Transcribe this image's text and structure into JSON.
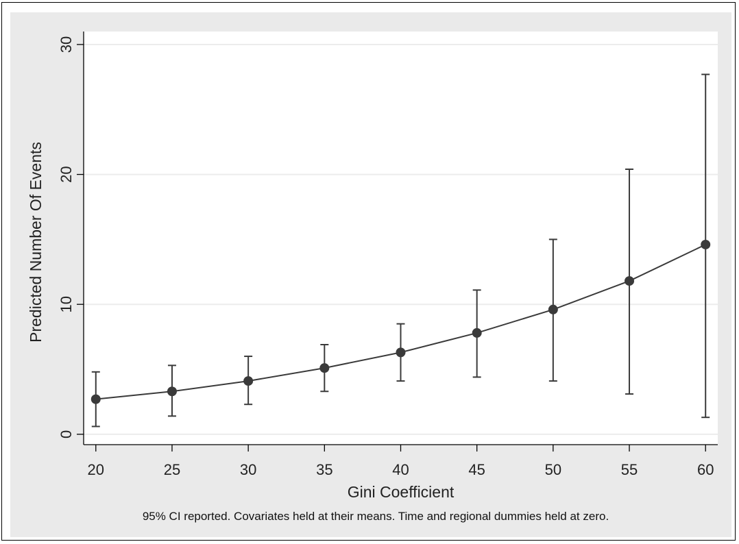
{
  "chart_data": {
    "type": "line",
    "title": "",
    "xlabel": "Gini Coefficient",
    "ylabel": "Predicted Number Of Events",
    "note": "95% CI reported. Covariates held at their means. Time and regional dummies held at zero.",
    "x": [
      20,
      25,
      30,
      35,
      40,
      45,
      50,
      55,
      60
    ],
    "series": [
      {
        "values": [
          2.7,
          3.3,
          4.1,
          5.1,
          6.3,
          7.8,
          9.6,
          11.8,
          14.6
        ],
        "ci_lower": [
          0.6,
          1.4,
          2.3,
          3.3,
          4.1,
          4.4,
          4.1,
          3.1,
          1.3
        ],
        "ci_upper": [
          4.8,
          5.3,
          6.0,
          6.9,
          8.5,
          11.1,
          15.0,
          20.4,
          27.7
        ]
      }
    ],
    "xlim": [
      19.2,
      60.8
    ],
    "ylim": [
      -0.8,
      31
    ],
    "xticks": [
      20,
      25,
      30,
      35,
      40,
      45,
      50,
      55,
      60
    ],
    "yticks": [
      0,
      10,
      20,
      30
    ],
    "grid": true,
    "colors": {
      "panel": "#eaeaea",
      "plot": "#ffffff",
      "grid": "#ececec",
      "series": "#3a3a3a"
    }
  }
}
